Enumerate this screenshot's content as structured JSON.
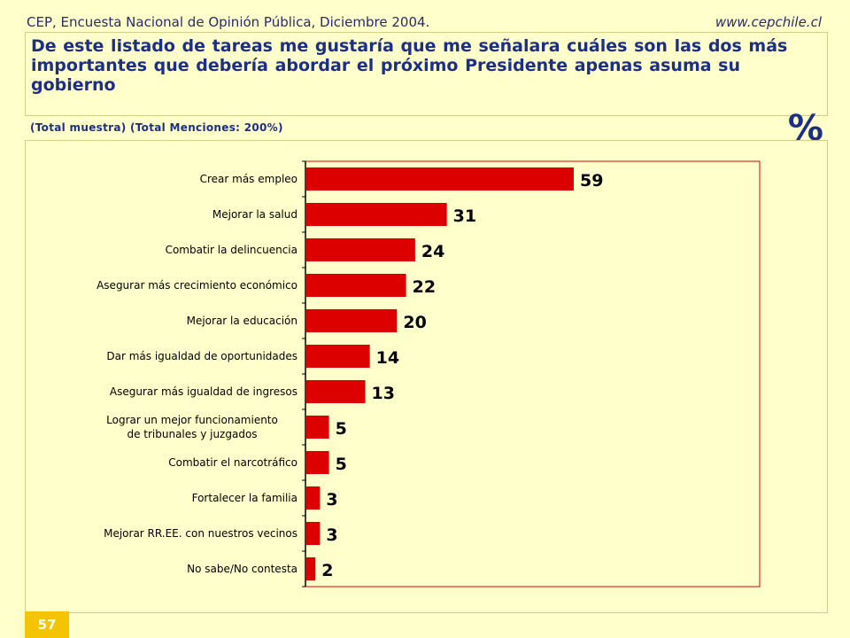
{
  "header": {
    "source": "CEP, Encuesta Nacional de Opinión Pública, Diciembre 2004.",
    "website": "www.cepchile.cl"
  },
  "subtitle": "(Total muestra)  (Total Menciones: 200%)",
  "unit_symbol": "%",
  "page_number": "57",
  "colors": {
    "bar": "#dd0000",
    "title": "#1c2f86",
    "background": "#ffffcc"
  },
  "chart_data": {
    "type": "bar",
    "orientation": "horizontal",
    "title": "De este listado de tareas me gustaría que me señalara cuáles son las dos más importantes que debería abordar el próximo Presidente apenas asuma su gobierno",
    "categories": [
      "Crear más empleo",
      "Mejorar la salud",
      "Combatir la delincuencia",
      "Asegurar más crecimiento económico",
      "Mejorar la educación",
      "Dar más igualdad de oportunidades",
      "Asegurar más igualdad de ingresos",
      [
        "Lograr un mejor funcionamiento",
        "de tribunales y juzgados"
      ],
      "Combatir el narcotráfico",
      "Fortalecer la familia",
      "Mejorar RR.EE. con nuestros vecinos",
      "No sabe/No contesta"
    ],
    "values": [
      59,
      31,
      24,
      22,
      20,
      14,
      13,
      5,
      5,
      3,
      3,
      2
    ],
    "xlim": [
      0,
      100
    ],
    "grid": false,
    "legend": "none"
  }
}
